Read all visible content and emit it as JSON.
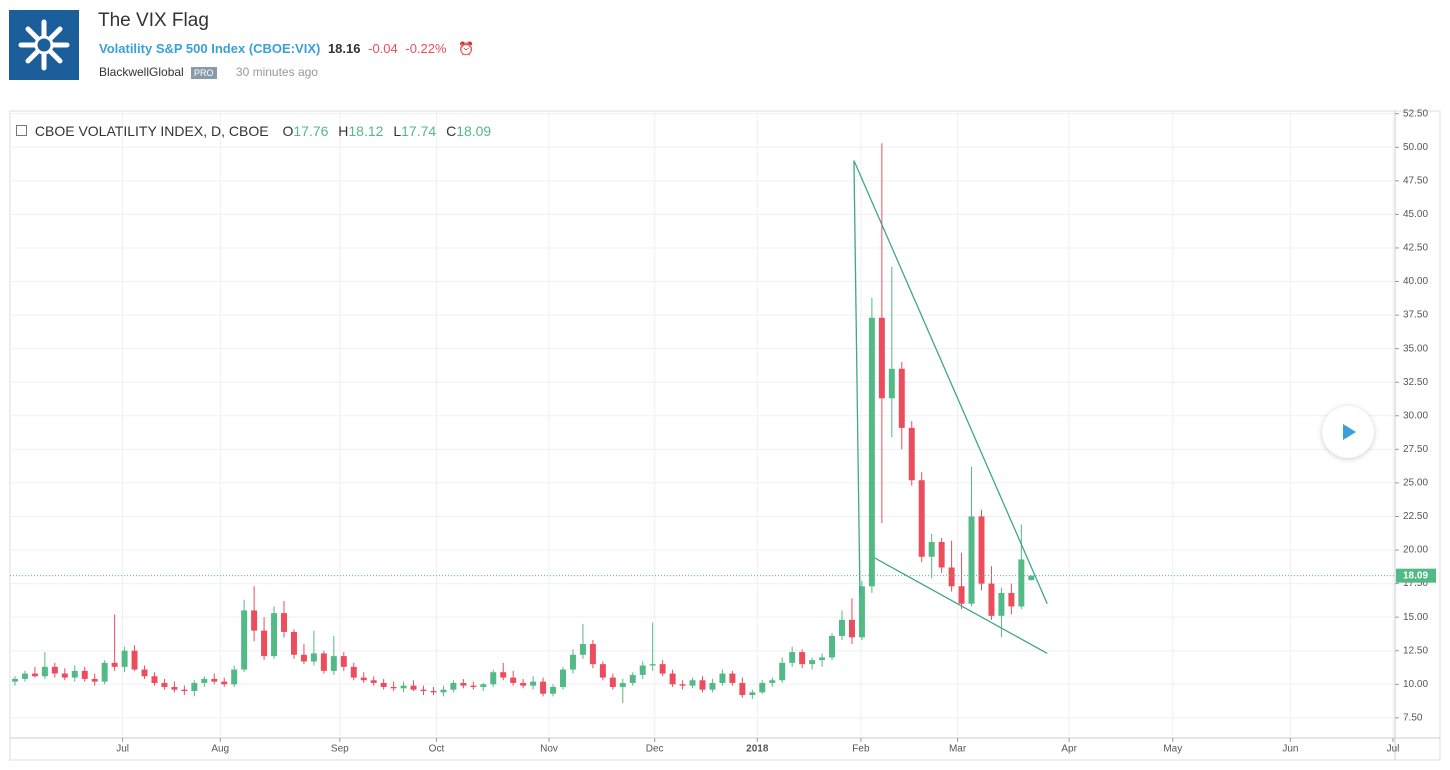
{
  "header": {
    "title": "The VIX Flag",
    "symbol_name": "Volatility S&P 500 Index",
    "symbol": "(CBOE:VIX)",
    "price": "18.16",
    "change": "-0.04",
    "change_pct": "-0.22%",
    "author": "BlackwellGlobal",
    "badge": "PRO",
    "time": "30 minutes ago"
  },
  "chart_data": {
    "type": "candlestick",
    "title": "CBOE VOLATILITY INDEX, D, CBOE",
    "legend_labels": [
      "O",
      "H",
      "L",
      "C"
    ],
    "up_color": "#53b987",
    "down_color": "#eb4d5c",
    "grid": true,
    "x": [
      0,
      1,
      2,
      3,
      4,
      5,
      6,
      7,
      8,
      9,
      10,
      11,
      12,
      13,
      14,
      15,
      16,
      17,
      18,
      19,
      20,
      21,
      22,
      23,
      24,
      25,
      26,
      27,
      28,
      29,
      30,
      31,
      32,
      33,
      34,
      35,
      36,
      37,
      38,
      39,
      40,
      41,
      42,
      43,
      44,
      45,
      46,
      47,
      48,
      49,
      50,
      51,
      52,
      53,
      54,
      55,
      56,
      57,
      58,
      59,
      60,
      61,
      62,
      63,
      64,
      65,
      66,
      67,
      68,
      69,
      70,
      71,
      72,
      73,
      74,
      75,
      76,
      77,
      78,
      79,
      80,
      81,
      82,
      83,
      84,
      85,
      86,
      87,
      88,
      89,
      90,
      91,
      92,
      93,
      94,
      95,
      96,
      97,
      98,
      99,
      100,
      101,
      102
    ],
    "open": [
      10.2,
      10.4,
      10.8,
      10.6,
      11.3,
      10.8,
      10.5,
      11.0,
      10.4,
      10.2,
      11.6,
      11.3,
      12.5,
      11.1,
      10.6,
      10.1,
      9.8,
      9.6,
      9.5,
      10.1,
      10.4,
      10.2,
      10.0,
      11.1,
      15.5,
      14.0,
      12.1,
      15.3,
      13.9,
      12.2,
      11.7,
      12.3,
      11.0,
      12.1,
      11.3,
      10.5,
      10.3,
      10.1,
      9.8,
      9.7,
      9.9,
      9.6,
      9.5,
      9.4,
      9.6,
      10.1,
      9.9,
      9.8,
      10.0,
      10.9,
      10.5,
      10.1,
      9.9,
      10.2,
      9.3,
      9.8,
      11.1,
      12.2,
      13.0,
      11.5,
      10.5,
      9.8,
      10.1,
      10.7,
      11.4,
      11.5,
      10.8,
      10.0,
      9.9,
      10.3,
      9.6,
      10.1,
      10.8,
      10.1,
      9.2,
      9.4,
      10.1,
      10.3,
      11.6,
      12.4,
      11.5,
      11.8,
      12.0,
      13.6,
      14.8,
      13.5,
      17.3,
      37.3,
      31.3,
      33.5,
      29.1,
      25.2,
      19.5,
      20.6,
      18.7,
      17.3,
      16.0,
      22.5,
      17.5,
      15.1,
      16.8,
      15.8,
      17.76
    ],
    "high": [
      10.6,
      11.0,
      11.3,
      12.4,
      11.6,
      11.2,
      11.4,
      11.3,
      10.8,
      11.8,
      15.2,
      12.8,
      12.9,
      11.4,
      10.9,
      10.4,
      10.2,
      9.9,
      10.3,
      10.6,
      10.8,
      10.5,
      11.4,
      16.3,
      17.3,
      15.0,
      15.8,
      16.2,
      14.1,
      13.0,
      14.0,
      12.5,
      13.6,
      12.4,
      11.6,
      10.9,
      10.6,
      10.4,
      10.2,
      10.2,
      10.3,
      9.9,
      9.8,
      9.9,
      10.3,
      10.4,
      10.2,
      10.1,
      11.1,
      11.6,
      11.0,
      10.4,
      10.6,
      10.5,
      10.0,
      11.3,
      12.6,
      14.5,
      13.3,
      11.7,
      10.8,
      10.4,
      10.9,
      11.7,
      14.6,
      11.8,
      11.1,
      10.3,
      10.5,
      10.6,
      10.4,
      11.1,
      11.0,
      10.5,
      9.6,
      10.3,
      10.5,
      12.0,
      12.8,
      12.6,
      12.0,
      12.3,
      13.8,
      15.5,
      16.4,
      17.7,
      38.8,
      50.3,
      41.1,
      34.0,
      29.6,
      25.8,
      21.2,
      20.9,
      20.7,
      19.8,
      26.2,
      23.0,
      18.8,
      17.2,
      17.5,
      21.9,
      18.12
    ],
    "low": [
      9.9,
      10.2,
      10.5,
      10.4,
      10.5,
      10.3,
      10.2,
      10.2,
      9.9,
      10.0,
      11.0,
      10.9,
      11.0,
      10.4,
      9.9,
      9.6,
      9.4,
      9.2,
      9.1,
      9.8,
      10.0,
      9.8,
      9.8,
      10.9,
      13.2,
      11.8,
      11.9,
      13.5,
      11.9,
      11.5,
      11.4,
      10.8,
      10.7,
      11.0,
      10.3,
      10.1,
      9.9,
      9.6,
      9.5,
      9.4,
      9.5,
      9.2,
      9.2,
      9.1,
      9.4,
      9.7,
      9.6,
      9.5,
      9.8,
      10.3,
      9.9,
      9.7,
      9.6,
      9.1,
      9.1,
      9.6,
      10.8,
      11.9,
      11.2,
      10.3,
      9.6,
      8.6,
      9.9,
      10.4,
      11.0,
      10.6,
      9.8,
      9.6,
      9.7,
      9.4,
      9.4,
      9.9,
      9.9,
      9.0,
      8.9,
      9.3,
      9.8,
      10.1,
      11.3,
      11.2,
      11.1,
      11.3,
      11.8,
      13.3,
      13.0,
      13.3,
      16.8,
      22.0,
      28.4,
      27.5,
      24.8,
      19.1,
      17.9,
      18.3,
      16.9,
      15.6,
      15.8,
      17.0,
      14.8,
      13.5,
      15.2,
      15.6,
      17.74
    ],
    "close": [
      10.4,
      10.8,
      10.6,
      11.3,
      10.8,
      10.5,
      11.0,
      10.4,
      10.2,
      11.6,
      11.3,
      12.5,
      11.1,
      10.6,
      10.1,
      9.8,
      9.6,
      9.5,
      10.1,
      10.4,
      10.2,
      10.0,
      11.1,
      15.5,
      14.0,
      12.1,
      15.3,
      13.9,
      12.2,
      11.7,
      12.3,
      11.0,
      12.1,
      11.3,
      10.5,
      10.3,
      10.1,
      9.8,
      9.7,
      9.9,
      9.6,
      9.5,
      9.4,
      9.6,
      10.1,
      9.9,
      9.8,
      10.0,
      10.9,
      10.5,
      10.1,
      9.9,
      10.2,
      9.3,
      9.8,
      11.1,
      12.2,
      13.0,
      11.5,
      10.5,
      9.8,
      10.1,
      10.7,
      11.4,
      11.5,
      10.8,
      10.0,
      9.9,
      10.3,
      9.6,
      10.1,
      10.8,
      10.1,
      9.2,
      9.4,
      10.1,
      10.3,
      11.6,
      12.4,
      11.5,
      11.8,
      12.0,
      13.6,
      14.8,
      13.5,
      17.3,
      37.3,
      31.3,
      33.5,
      29.1,
      25.2,
      19.5,
      20.6,
      18.7,
      17.3,
      16.0,
      22.5,
      17.5,
      15.1,
      16.8,
      15.8,
      19.3,
      18.09
    ],
    "xlim": [
      -0.5,
      138.5
    ],
    "xticks": [
      {
        "value": 10.8,
        "label": "Jul"
      },
      {
        "value": 20.6,
        "label": "Aug"
      },
      {
        "value": 32.6,
        "label": "Sep"
      },
      {
        "value": 42.3,
        "label": "Oct"
      },
      {
        "value": 53.6,
        "label": "Nov"
      },
      {
        "value": 64.2,
        "label": "Dec"
      },
      {
        "value": 74.5,
        "label": "2018"
      },
      {
        "value": 84.9,
        "label": "Feb"
      },
      {
        "value": 94.6,
        "label": "Mar"
      },
      {
        "value": 105.8,
        "label": "Apr"
      },
      {
        "value": 116.2,
        "label": "May"
      },
      {
        "value": 128,
        "label": "Jun"
      },
      {
        "value": 138.3,
        "label": "Jul"
      }
    ],
    "ylim": [
      6,
      52.7
    ],
    "yticks": [
      {
        "value": 7.5,
        "label": "7.50"
      },
      {
        "value": 10,
        "label": "10.00"
      },
      {
        "value": 12.5,
        "label": "12.50"
      },
      {
        "value": 15,
        "label": "15.00"
      },
      {
        "value": 17.5,
        "label": "17.50"
      },
      {
        "value": 20,
        "label": "20.00"
      },
      {
        "value": 22.5,
        "label": "22.50"
      },
      {
        "value": 25,
        "label": "25.00"
      },
      {
        "value": 27.5,
        "label": "27.50"
      },
      {
        "value": 30,
        "label": "30.00"
      },
      {
        "value": 32.5,
        "label": "32.50"
      },
      {
        "value": 35,
        "label": "35.00"
      },
      {
        "value": 37.5,
        "label": "37.50"
      },
      {
        "value": 40,
        "label": "40.00"
      },
      {
        "value": 42.5,
        "label": "42.50"
      },
      {
        "value": 45,
        "label": "45.00"
      },
      {
        "value": 47.5,
        "label": "47.50"
      },
      {
        "value": 50,
        "label": "50.00"
      },
      {
        "value": 52.5,
        "label": "52.50"
      }
    ],
    "trend_color": "#3fa68a",
    "trend_lines": [
      {
        "x": [
          84.2,
          84.8
        ],
        "y": [
          49.0,
          16.7
        ]
      },
      {
        "x": [
          84.2,
          103.6
        ],
        "y": [
          49.0,
          16.0
        ]
      },
      {
        "x": [
          86.3,
          103.6
        ],
        "y": [
          19.4,
          12.3
        ]
      }
    ]
  }
}
